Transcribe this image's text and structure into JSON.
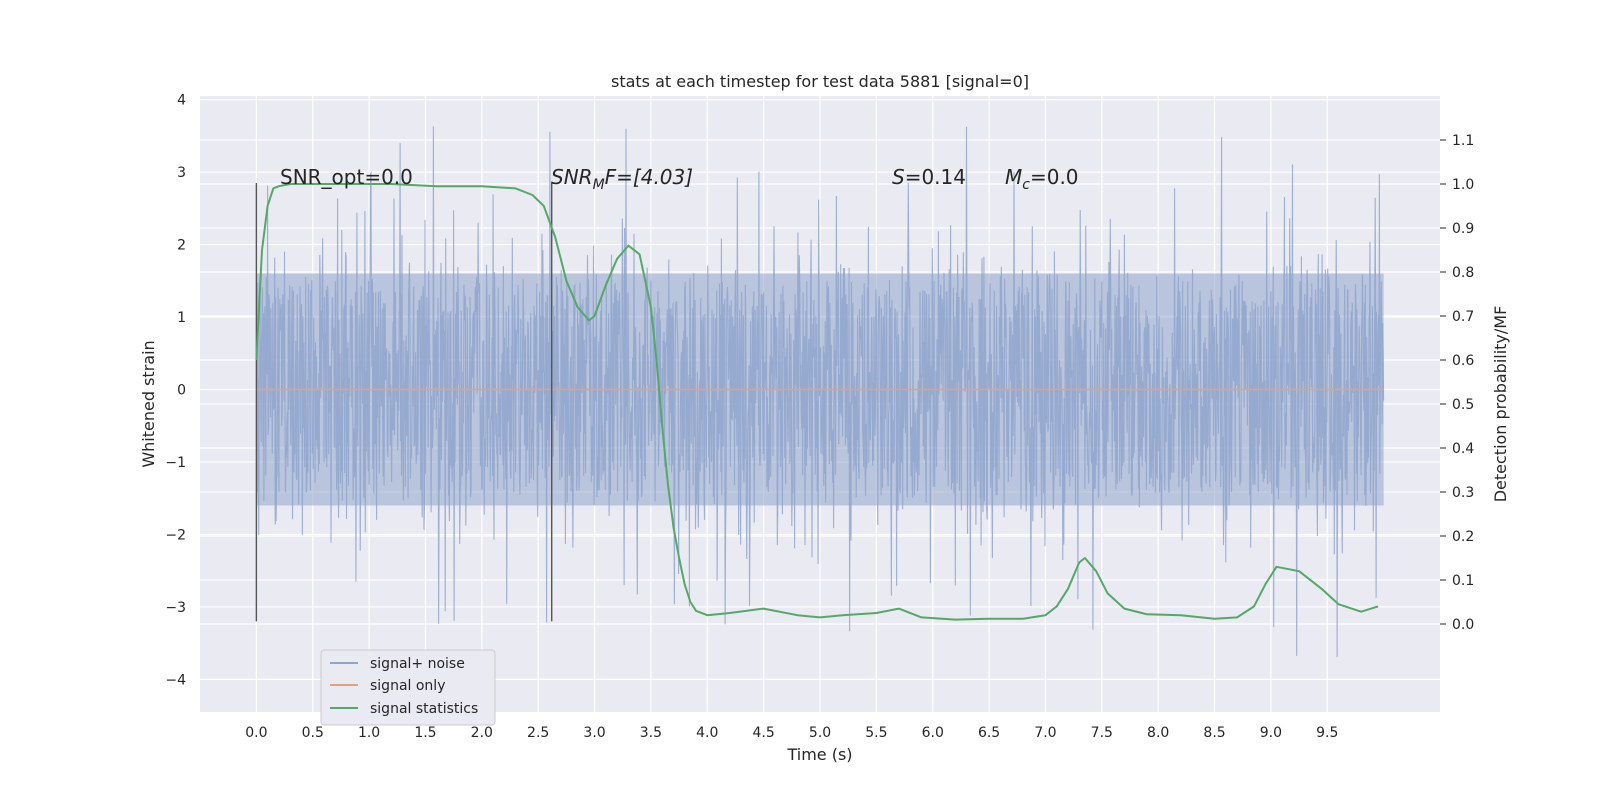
{
  "chart_data": {
    "type": "line",
    "title": "stats at each timestep for test data 5881 [signal=0]",
    "xlabel": "Time (s)",
    "ylabel_left": "Whitened strain",
    "ylabel_right": "Detection probability/MF",
    "xlim": [
      -0.5,
      10.5
    ],
    "ylim_left": [
      -4.45,
      4.05
    ],
    "ylim_right": [
      -0.2,
      1.2
    ],
    "x_ticks": [
      "0.0",
      "0.5",
      "1.0",
      "1.5",
      "2.0",
      "2.5",
      "3.0",
      "3.5",
      "4.0",
      "4.5",
      "5.0",
      "5.5",
      "6.0",
      "6.5",
      "7.0",
      "7.5",
      "8.0",
      "8.5",
      "9.0",
      "9.5"
    ],
    "y_ticks_left": [
      "4",
      "3",
      "2",
      "1",
      "0",
      "−1",
      "−2",
      "−3",
      "−4"
    ],
    "y_ticks_right": [
      "1.1",
      "1.0",
      "0.9",
      "0.8",
      "0.7",
      "0.6",
      "0.5",
      "0.4",
      "0.3",
      "0.2",
      "0.1",
      "0.0"
    ],
    "grid": true,
    "legend_position": "lower-left",
    "annotations": {
      "snr_opt": "SNR_opt=0.0",
      "snr_mf_prefix": "SNR",
      "snr_mf_sub": "M",
      "snr_mf_suffix": "F=[4.03]",
      "s_value": "=0.14",
      "mc_value": "=0.0"
    },
    "vertical_markers": [
      0.0,
      2.62
    ],
    "noise_amplitude_band": [
      -1.6,
      1.6
    ],
    "series": [
      {
        "name": "signal+ noise",
        "axis": "left",
        "color": "#8fa4cc",
        "x_range": [
          0.0,
          10.0
        ],
        "note_values": "dense noise trace roughly within ±1.6 with spikes to about ±4"
      },
      {
        "name": "signal only",
        "axis": "left",
        "color": "#e8a07c",
        "x": [
          0.0,
          10.0
        ],
        "y": [
          0.0,
          0.0
        ]
      },
      {
        "name": "signal statistics",
        "axis": "right",
        "color": "#55a868",
        "x": [
          0.0,
          0.05,
          0.1,
          0.15,
          0.2,
          0.3,
          0.5,
          0.8,
          1.2,
          1.6,
          2.0,
          2.3,
          2.45,
          2.55,
          2.65,
          2.75,
          2.85,
          2.95,
          3.0,
          3.1,
          3.2,
          3.3,
          3.4,
          3.5,
          3.55,
          3.6,
          3.65,
          3.7,
          3.75,
          3.8,
          3.85,
          3.9,
          4.0,
          4.2,
          4.5,
          4.8,
          5.0,
          5.2,
          5.5,
          5.7,
          5.9,
          6.2,
          6.5,
          6.8,
          7.0,
          7.1,
          7.2,
          7.3,
          7.35,
          7.45,
          7.55,
          7.7,
          7.9,
          8.2,
          8.5,
          8.7,
          8.85,
          8.95,
          9.05,
          9.25,
          9.45,
          9.6,
          9.8,
          9.95
        ],
        "y": [
          0.6,
          0.85,
          0.95,
          0.99,
          0.995,
          1.0,
          1.0,
          1.0,
          1.0,
          0.995,
          0.995,
          0.99,
          0.975,
          0.95,
          0.88,
          0.78,
          0.72,
          0.69,
          0.7,
          0.77,
          0.83,
          0.86,
          0.84,
          0.72,
          0.6,
          0.45,
          0.32,
          0.22,
          0.15,
          0.09,
          0.05,
          0.03,
          0.02,
          0.025,
          0.035,
          0.02,
          0.015,
          0.02,
          0.025,
          0.035,
          0.015,
          0.01,
          0.012,
          0.012,
          0.02,
          0.04,
          0.08,
          0.14,
          0.15,
          0.12,
          0.07,
          0.035,
          0.022,
          0.02,
          0.012,
          0.015,
          0.04,
          0.09,
          0.13,
          0.12,
          0.08,
          0.045,
          0.028,
          0.04
        ]
      }
    ]
  }
}
